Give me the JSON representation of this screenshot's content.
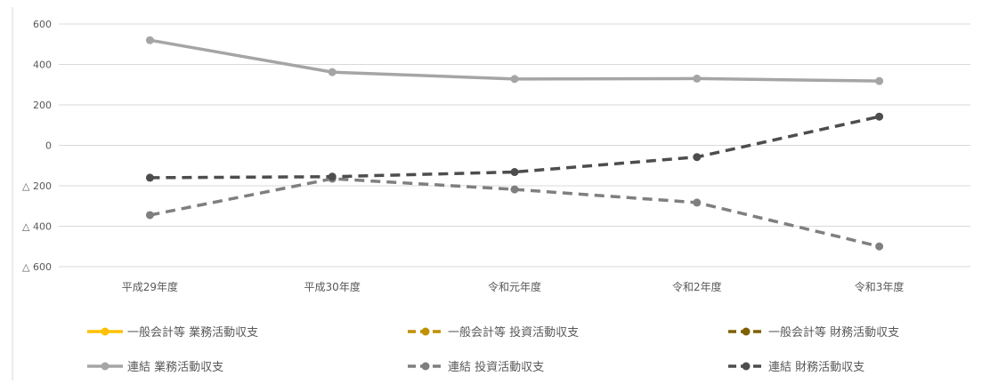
{
  "chart_data": {
    "type": "line",
    "title": "",
    "xlabel": "",
    "ylabel": "",
    "categories": [
      "平成29年度",
      "平成30年度",
      "令和元年度",
      "令和2年度",
      "令和3年度"
    ],
    "y_ticks": [
      {
        "value": 600,
        "label": "600"
      },
      {
        "value": 400,
        "label": "400"
      },
      {
        "value": 200,
        "label": "200"
      },
      {
        "value": 0,
        "label": "0"
      },
      {
        "value": -200,
        "label": "△ 200"
      },
      {
        "value": -400,
        "label": "△ 400"
      },
      {
        "value": -600,
        "label": "△ 600"
      }
    ],
    "ylim": [
      -600,
      600
    ],
    "grid": true,
    "legend_position": "bottom",
    "series": [
      {
        "name": "一般会計等 業務活動収支",
        "color": "#ffc000",
        "dashed": false,
        "values": [
          null,
          null,
          null,
          null,
          null
        ]
      },
      {
        "name": "一般会計等 投資活動収支",
        "color": "#bf9000",
        "dashed": true,
        "values": [
          null,
          null,
          null,
          null,
          null
        ]
      },
      {
        "name": "一般会計等 財務活動収支",
        "color": "#7f6000",
        "dashed": true,
        "values": [
          null,
          null,
          null,
          null,
          null
        ]
      },
      {
        "name": "連結 業務活動収支",
        "color": "#a5a5a5",
        "dashed": false,
        "values": [
          520,
          362,
          328,
          330,
          318
        ]
      },
      {
        "name": "連結 投資活動収支",
        "color": "#7f7f7f",
        "dashed": true,
        "values": [
          -345,
          -165,
          -218,
          -283,
          -500
        ]
      },
      {
        "name": "連結 財務活動収支",
        "color": "#4d4d4d",
        "dashed": true,
        "values": [
          -160,
          -155,
          -132,
          -58,
          142
        ]
      }
    ]
  }
}
